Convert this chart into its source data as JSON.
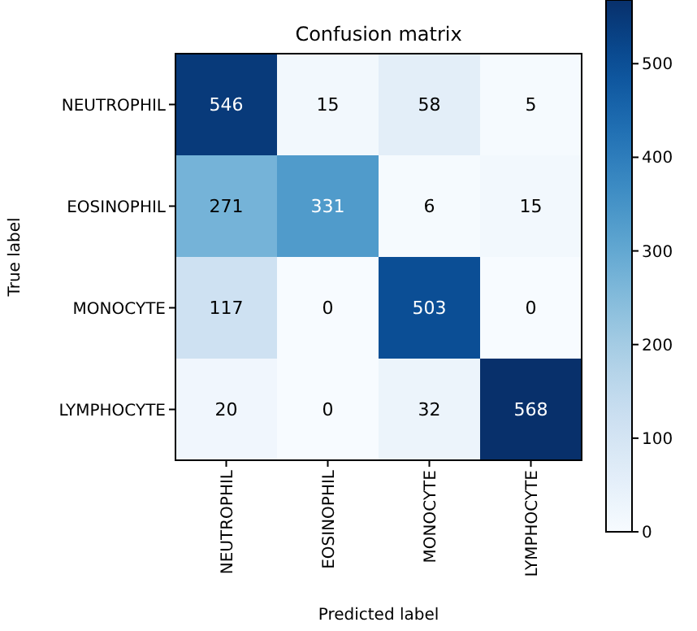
{
  "chart_data": {
    "type": "heatmap",
    "title": "Confusion matrix",
    "xlabel": "Predicted label",
    "ylabel": "True label",
    "categories": [
      "NEUTROPHIL",
      "EOSINOPHIL",
      "MONOCYTE",
      "LYMPHOCYTE"
    ],
    "y_categories": [
      "NEUTROPHIL",
      "EOSINOPHIL",
      "MONOCYTE",
      "LYMPHOCYTE"
    ],
    "cells": [
      [
        546,
        15,
        58,
        5
      ],
      [
        271,
        331,
        6,
        15
      ],
      [
        117,
        0,
        503,
        0
      ],
      [
        20,
        0,
        32,
        568
      ]
    ],
    "data_labels": true,
    "clim": [
      0,
      568
    ],
    "cticks": [
      0,
      100,
      200,
      300,
      400,
      500
    ]
  }
}
